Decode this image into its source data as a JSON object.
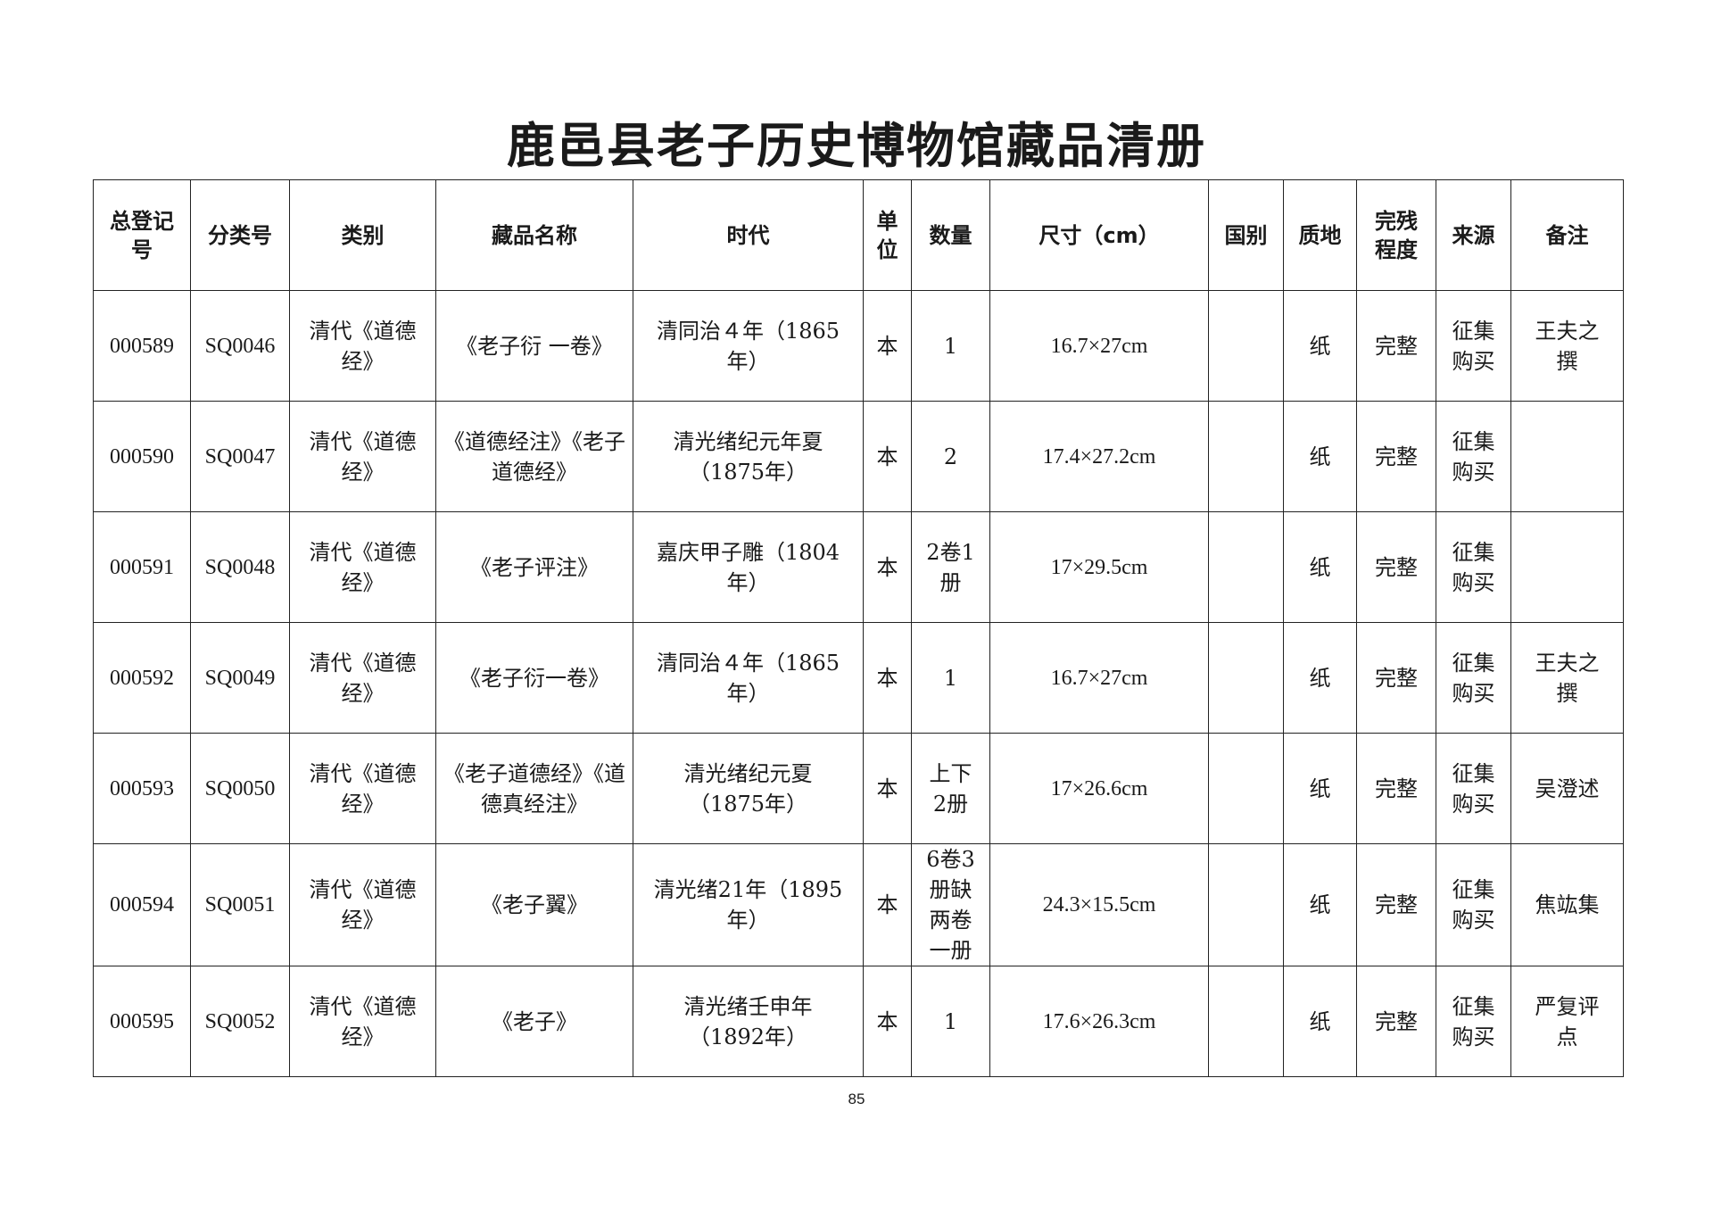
{
  "title": "鹿邑县老子历史博物馆藏品清册",
  "headers": {
    "reg_no": "总登记号",
    "class_no": "分类号",
    "category": "类别",
    "name": "藏品名称",
    "era": "时代",
    "unit": "单位",
    "qty": "数量",
    "size": "尺寸（cm）",
    "country": "国别",
    "material": "质地",
    "condition": "完残程度",
    "source": "来源",
    "note": "备注"
  },
  "rows": [
    {
      "reg_no": "000589",
      "class_no": "SQ0046",
      "category": "清代《道德经》",
      "name": "《老子衍 一卷》",
      "era": "清同治４年（1865年）",
      "unit": "本",
      "qty": "1",
      "size": "16.7×27cm",
      "country": "",
      "material": "纸",
      "condition": "完整",
      "source": "征集购买",
      "note": "王夫之撰"
    },
    {
      "reg_no": "000590",
      "class_no": "SQ0047",
      "category": "清代《道德经》",
      "name": "《道德经注》《老子道德经》",
      "era": "清光绪纪元年夏（1875年）",
      "unit": "本",
      "qty": "2",
      "size": "17.4×27.2cm",
      "country": "",
      "material": "纸",
      "condition": "完整",
      "source": "征集购买",
      "note": ""
    },
    {
      "reg_no": "000591",
      "class_no": "SQ0048",
      "category": "清代《道德经》",
      "name": "《老子评注》",
      "era": "嘉庆甲子雕（1804年）",
      "unit": "本",
      "qty": "2卷1册",
      "size": "17×29.5cm",
      "country": "",
      "material": "纸",
      "condition": "完整",
      "source": "征集购买",
      "note": ""
    },
    {
      "reg_no": "000592",
      "class_no": "SQ0049",
      "category": "清代《道德经》",
      "name": "《老子衍一卷》",
      "era": "清同治４年（1865年）",
      "unit": "本",
      "qty": "1",
      "size": "16.7×27cm",
      "country": "",
      "material": "纸",
      "condition": "完整",
      "source": "征集购买",
      "note": "王夫之撰"
    },
    {
      "reg_no": "000593",
      "class_no": "SQ0050",
      "category": "清代《道德经》",
      "name": "《老子道德经》《道德真经注》",
      "era": "清光绪纪元夏（1875年）",
      "unit": "本",
      "qty": "上下2册",
      "size": "17×26.6cm",
      "country": "",
      "material": "纸",
      "condition": "完整",
      "source": "征集购买",
      "note": "吴澄述"
    },
    {
      "reg_no": "000594",
      "class_no": "SQ0051",
      "category": "清代《道德经》",
      "name": "《老子翼》",
      "era": "清光绪21年（1895年）",
      "unit": "本",
      "qty": "6卷3册缺两卷一册",
      "size": "24.3×15.5cm",
      "country": "",
      "material": "纸",
      "condition": "完整",
      "source": "征集购买",
      "note": "焦竑集"
    },
    {
      "reg_no": "000595",
      "class_no": "SQ0052",
      "category": "清代《道德经》",
      "name": "《老子》",
      "era": "清光绪壬申年（1892年）",
      "unit": "本",
      "qty": "1",
      "size": "17.6×26.3cm",
      "country": "",
      "material": "纸",
      "condition": "完整",
      "source": "征集购买",
      "note": "严复评点"
    }
  ],
  "page_number": "85"
}
